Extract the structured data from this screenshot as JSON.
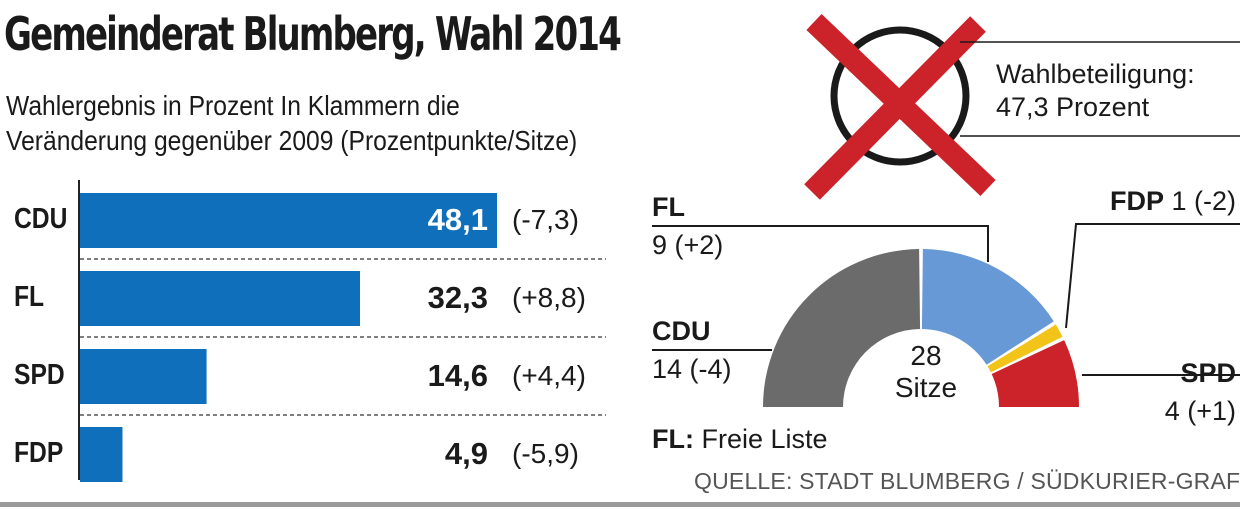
{
  "title": "Gemeinderat Blumberg, Wahl 2014",
  "subtitle_line1": "Wahlergebnis in Prozent  In Klammern die",
  "subtitle_line2": "Veränderung gegenüber 2009 (Prozentpunkte/Sitze)",
  "turnout": {
    "label": "Wahlbeteiligung:",
    "value": "47,3 Prozent"
  },
  "seats_center": {
    "number": "28",
    "word": "Sitze"
  },
  "seat_labels": {
    "fl": {
      "party": "FL",
      "seats": "9 (+2)"
    },
    "cdu": {
      "party": "CDU",
      "seats": "14 (-4)"
    },
    "fdp": {
      "party": "FDP",
      "seats": "1 (-2)"
    },
    "spd": {
      "party": "SPD",
      "seats": "4 (+1)"
    }
  },
  "legend_note": {
    "abbr": "FL:",
    "text": "Freie Liste"
  },
  "source": "QUELLE: STADT BLUMBERG / SÜDKURIER-GRAFIK",
  "colors": {
    "bar": "#0f6fba",
    "cdu": "#6b6b6b",
    "fl": "#6699d6",
    "fdp": "#f2c318",
    "spd": "#cc2229",
    "cross": "#cc2229"
  },
  "chart_data": [
    {
      "type": "bar",
      "orientation": "horizontal",
      "categories": [
        "CDU",
        "FL",
        "SPD",
        "FDP"
      ],
      "values": [
        48.1,
        32.3,
        14.6,
        4.9
      ],
      "value_labels": [
        "48,1",
        "32,3",
        "14,6",
        "4,9"
      ],
      "change_labels": [
        "(-7,3)",
        "(+8,8)",
        "(+4,4)",
        "(-5,9)"
      ],
      "xlim": [
        0,
        48.1
      ]
    },
    {
      "type": "pie",
      "variant": "semicircle",
      "total": 28,
      "slices": [
        {
          "label": "CDU",
          "value": 14,
          "change": -4
        },
        {
          "label": "FL",
          "value": 9,
          "change": 2
        },
        {
          "label": "FDP",
          "value": 1,
          "change": -2
        },
        {
          "label": "SPD",
          "value": 4,
          "change": 1
        }
      ]
    }
  ]
}
